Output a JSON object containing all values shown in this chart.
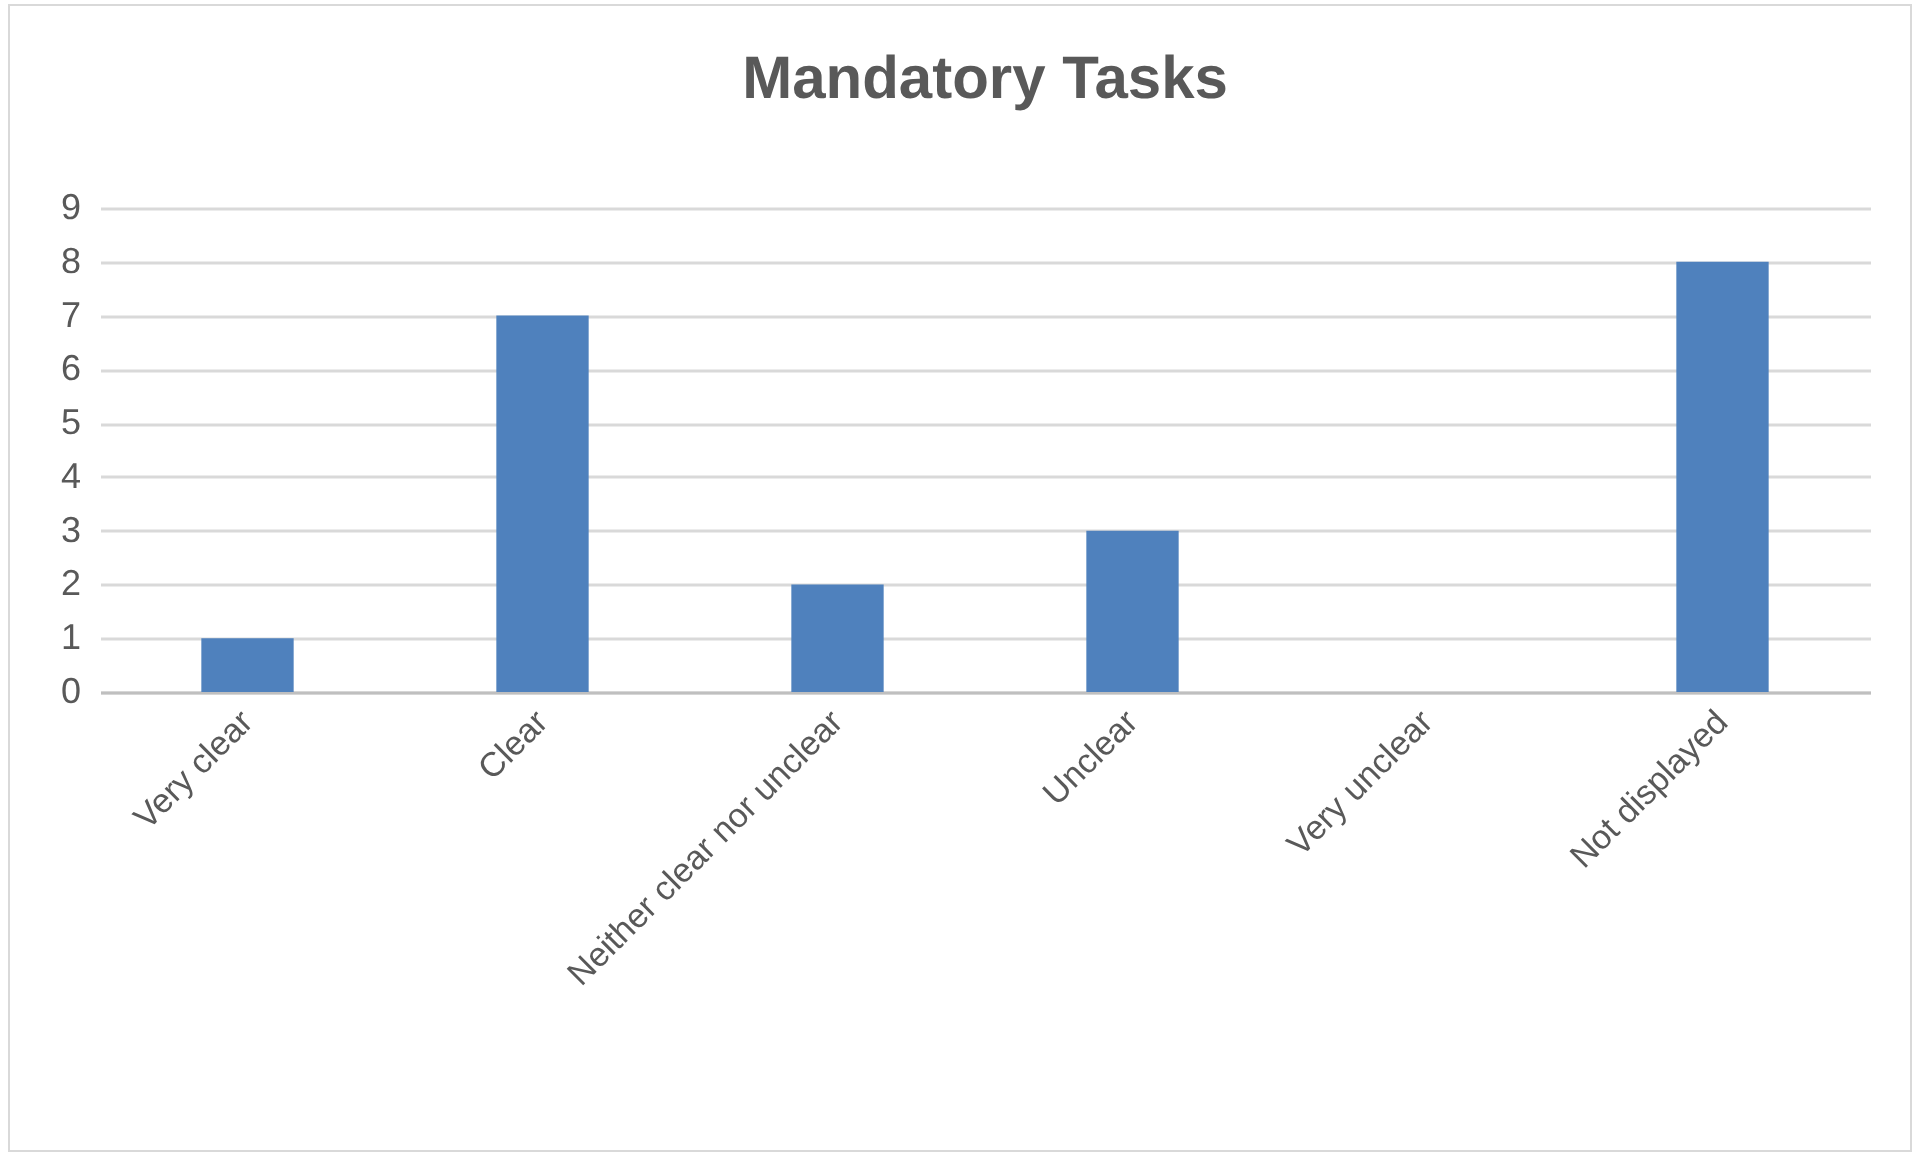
{
  "chart_data": {
    "type": "bar",
    "title": "Mandatory Tasks",
    "categories": [
      "Very clear",
      "Clear",
      "Neither clear nor unclear",
      "Unclear",
      "Very unclear",
      "Not displayed"
    ],
    "values": [
      1,
      7,
      2,
      3,
      0,
      8
    ],
    "color": "#4f81bd",
    "ylim": [
      0,
      9
    ],
    "yticks": [
      0,
      1,
      2,
      3,
      4,
      5,
      6,
      7,
      8,
      9
    ],
    "grid": "y"
  }
}
